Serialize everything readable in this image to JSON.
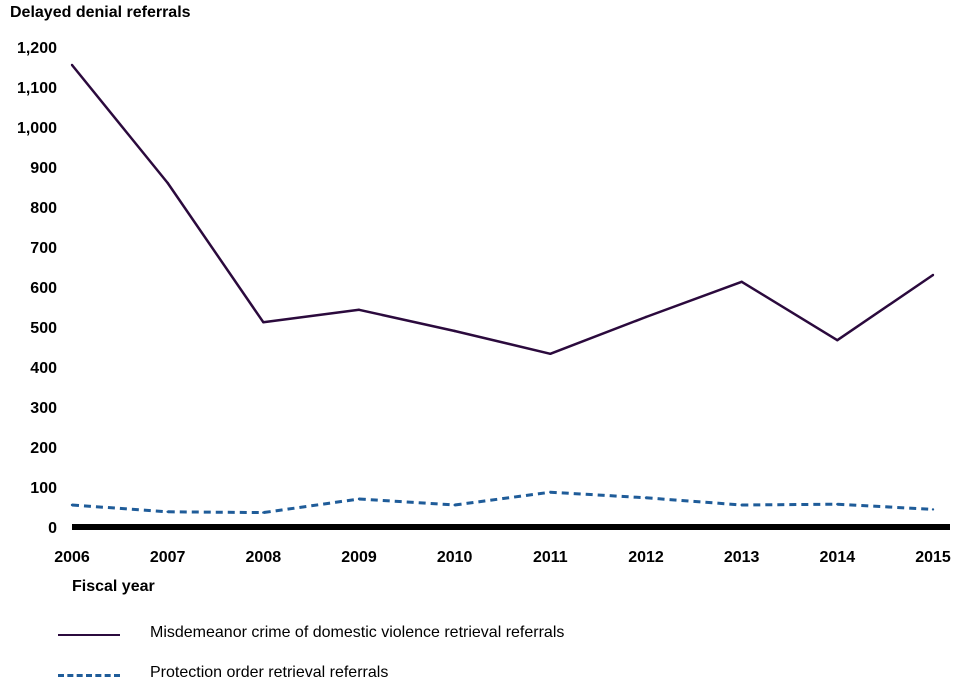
{
  "chart_data": {
    "type": "line",
    "title": "",
    "xlabel": "Fiscal year",
    "ylabel": "Delayed denial referrals",
    "x": [
      "2006",
      "2007",
      "2008",
      "2009",
      "2010",
      "2011",
      "2012",
      "2013",
      "2014",
      "2015"
    ],
    "ylim": [
      0,
      1200
    ],
    "yticks": [
      0,
      100,
      200,
      300,
      400,
      500,
      600,
      700,
      800,
      900,
      1000,
      1100,
      1200
    ],
    "ytick_labels": [
      "0",
      "100",
      "200",
      "300",
      "400",
      "500",
      "600",
      "700",
      "800",
      "900",
      "1,000",
      "1,100",
      "1,200"
    ],
    "grid": false,
    "legend_position": "bottom",
    "series": [
      {
        "name": "Misdemeanor crime of domestic violence retrieval referrals",
        "values": [
          1155,
          860,
          512,
          543,
          490,
          433,
          525,
          613,
          467,
          630
        ],
        "color": "#2b0a3d",
        "style": "solid"
      },
      {
        "name": "Protection order retrieval referrals",
        "values": [
          55,
          38,
          36,
          70,
          55,
          87,
          73,
          55,
          57,
          44
        ],
        "color": "#1f5c99",
        "style": "dashed"
      }
    ]
  }
}
